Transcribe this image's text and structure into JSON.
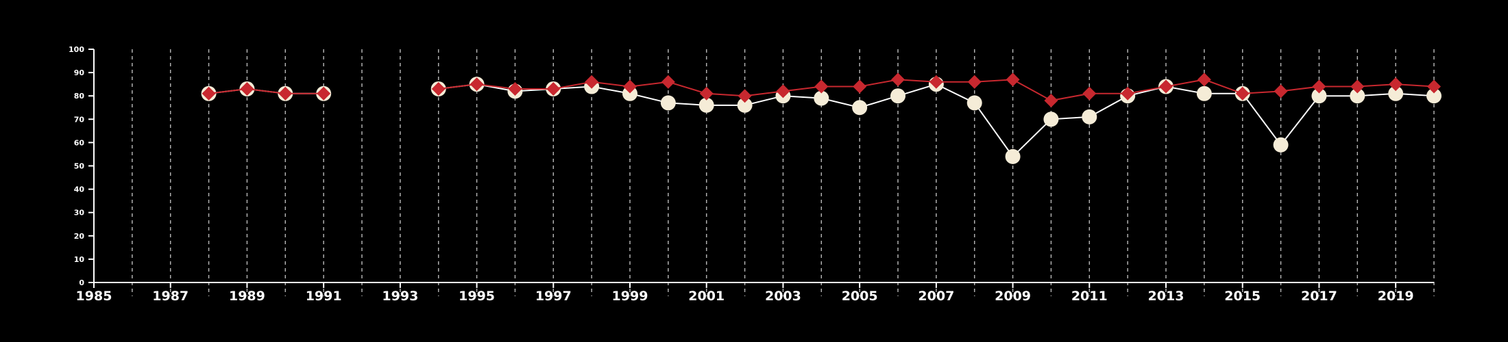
{
  "chart_data": {
    "type": "line",
    "title": "",
    "xlabel": "",
    "ylabel": "",
    "xlim": [
      1985,
      2020
    ],
    "ylim": [
      0,
      100
    ],
    "x_ticks": [
      1985,
      1987,
      1989,
      1991,
      1993,
      1995,
      1997,
      1999,
      2001,
      2003,
      2005,
      2007,
      2009,
      2011,
      2013,
      2015,
      2017,
      2019
    ],
    "y_ticks": [
      0,
      10,
      20,
      30,
      40,
      50,
      60,
      70,
      80,
      90,
      100
    ],
    "grid": "vertical-dashed-yearly",
    "legend": "none",
    "background": "#000000",
    "series": [
      {
        "marker": "circle",
        "color": "#f5ecd7",
        "line_color": "#ffffff",
        "points": [
          [
            1988,
            81
          ],
          [
            1989,
            83
          ],
          [
            1990,
            81
          ],
          [
            1991,
            81
          ],
          [
            1994,
            83
          ],
          [
            1995,
            85
          ],
          [
            1996,
            82
          ],
          [
            1997,
            83
          ],
          [
            1998,
            84
          ],
          [
            1999,
            81
          ],
          [
            2000,
            77
          ],
          [
            2001,
            76
          ],
          [
            2002,
            76
          ],
          [
            2003,
            80
          ],
          [
            2004,
            79
          ],
          [
            2005,
            75
          ],
          [
            2006,
            80
          ],
          [
            2007,
            85
          ],
          [
            2008,
            77
          ],
          [
            2009,
            54
          ],
          [
            2010,
            70
          ],
          [
            2011,
            71
          ],
          [
            2012,
            80
          ],
          [
            2013,
            84
          ],
          [
            2014,
            81
          ],
          [
            2015,
            81
          ],
          [
            2016,
            59
          ],
          [
            2017,
            80
          ],
          [
            2018,
            80
          ],
          [
            2019,
            81
          ],
          [
            2020,
            80
          ]
        ]
      },
      {
        "marker": "diamond",
        "color": "#c8282f",
        "line_color": "#c8282f",
        "points": [
          [
            1988,
            81
          ],
          [
            1989,
            83
          ],
          [
            1990,
            81
          ],
          [
            1991,
            81
          ],
          [
            1994,
            83
          ],
          [
            1995,
            85
          ],
          [
            1996,
            83
          ],
          [
            1997,
            83
          ],
          [
            1998,
            86
          ],
          [
            1999,
            84
          ],
          [
            2000,
            86
          ],
          [
            2001,
            81
          ],
          [
            2002,
            80
          ],
          [
            2003,
            82
          ],
          [
            2004,
            84
          ],
          [
            2005,
            84
          ],
          [
            2006,
            87
          ],
          [
            2007,
            86
          ],
          [
            2008,
            86
          ],
          [
            2009,
            87
          ],
          [
            2010,
            78
          ],
          [
            2011,
            81
          ],
          [
            2012,
            81
          ],
          [
            2013,
            84
          ],
          [
            2014,
            87
          ],
          [
            2015,
            81
          ],
          [
            2016,
            82
          ],
          [
            2017,
            84
          ],
          [
            2018,
            84
          ],
          [
            2019,
            85
          ],
          [
            2020,
            84
          ]
        ]
      }
    ]
  }
}
